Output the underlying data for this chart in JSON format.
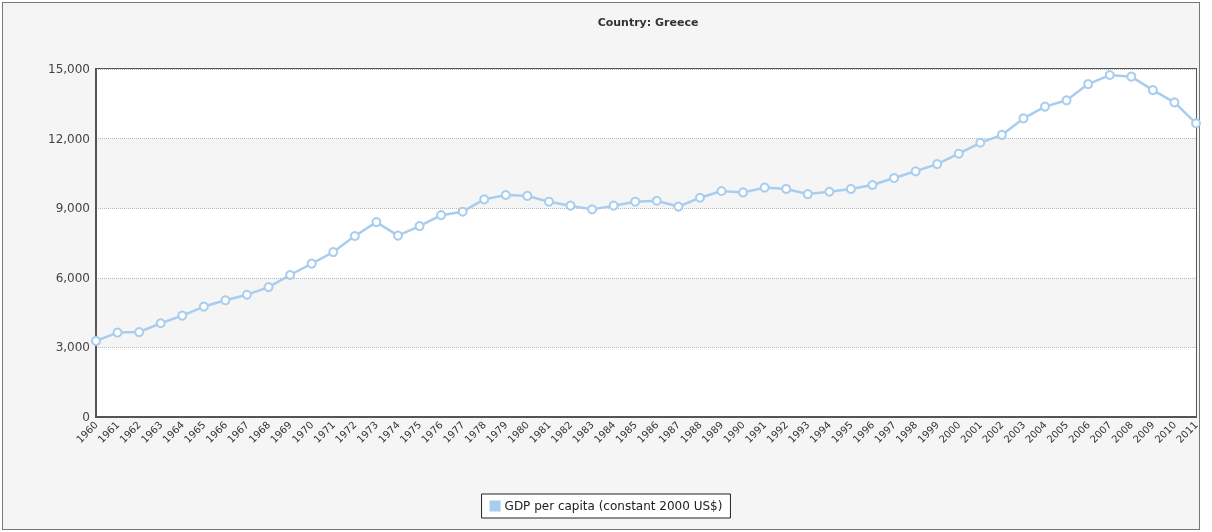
{
  "chart_data": {
    "type": "line",
    "title": "Country: Greece",
    "categories": [
      "1960",
      "1961",
      "1962",
      "1963",
      "1964",
      "1965",
      "1966",
      "1967",
      "1968",
      "1969",
      "1970",
      "1971",
      "1972",
      "1973",
      "1974",
      "1975",
      "1976",
      "1977",
      "1978",
      "1979",
      "1980",
      "1981",
      "1982",
      "1983",
      "1984",
      "1985",
      "1986",
      "1987",
      "1988",
      "1989",
      "1990",
      "1991",
      "1992",
      "1993",
      "1994",
      "1995",
      "1996",
      "1997",
      "1998",
      "1999",
      "2000",
      "2001",
      "2002",
      "2003",
      "2004",
      "2005",
      "2006",
      "2007",
      "2008",
      "2009",
      "2010",
      "2011"
    ],
    "series": [
      {
        "name": "GDP per capita (constant 2000 US$)",
        "color": "#a9cdee",
        "values": [
          3280,
          3640,
          3660,
          4040,
          4370,
          4760,
          5030,
          5270,
          5600,
          6120,
          6610,
          7110,
          7800,
          8400,
          7820,
          8230,
          8700,
          8850,
          9380,
          9570,
          9530,
          9280,
          9110,
          8950,
          9110,
          9280,
          9320,
          9070,
          9450,
          9740,
          9680,
          9890,
          9830,
          9610,
          9710,
          9830,
          10000,
          10300,
          10590,
          10900,
          11350,
          11820,
          12160,
          12870,
          13380,
          13650,
          14350,
          14740,
          14670,
          14090,
          13560,
          12660
        ]
      }
    ],
    "ylim": [
      0,
      15000
    ],
    "yticks": [
      0,
      {
        "value": 3000,
        "label": "3,000"
      },
      {
        "value": 6000,
        "label": "6,000"
      },
      {
        "value": 9000,
        "label": "9,000"
      },
      {
        "value": 12000,
        "label": "12,000"
      },
      {
        "value": 15000,
        "label": "15,000"
      }
    ],
    "grid": "y",
    "legend": "bottom",
    "marker": "circle",
    "line_style": "solid"
  }
}
